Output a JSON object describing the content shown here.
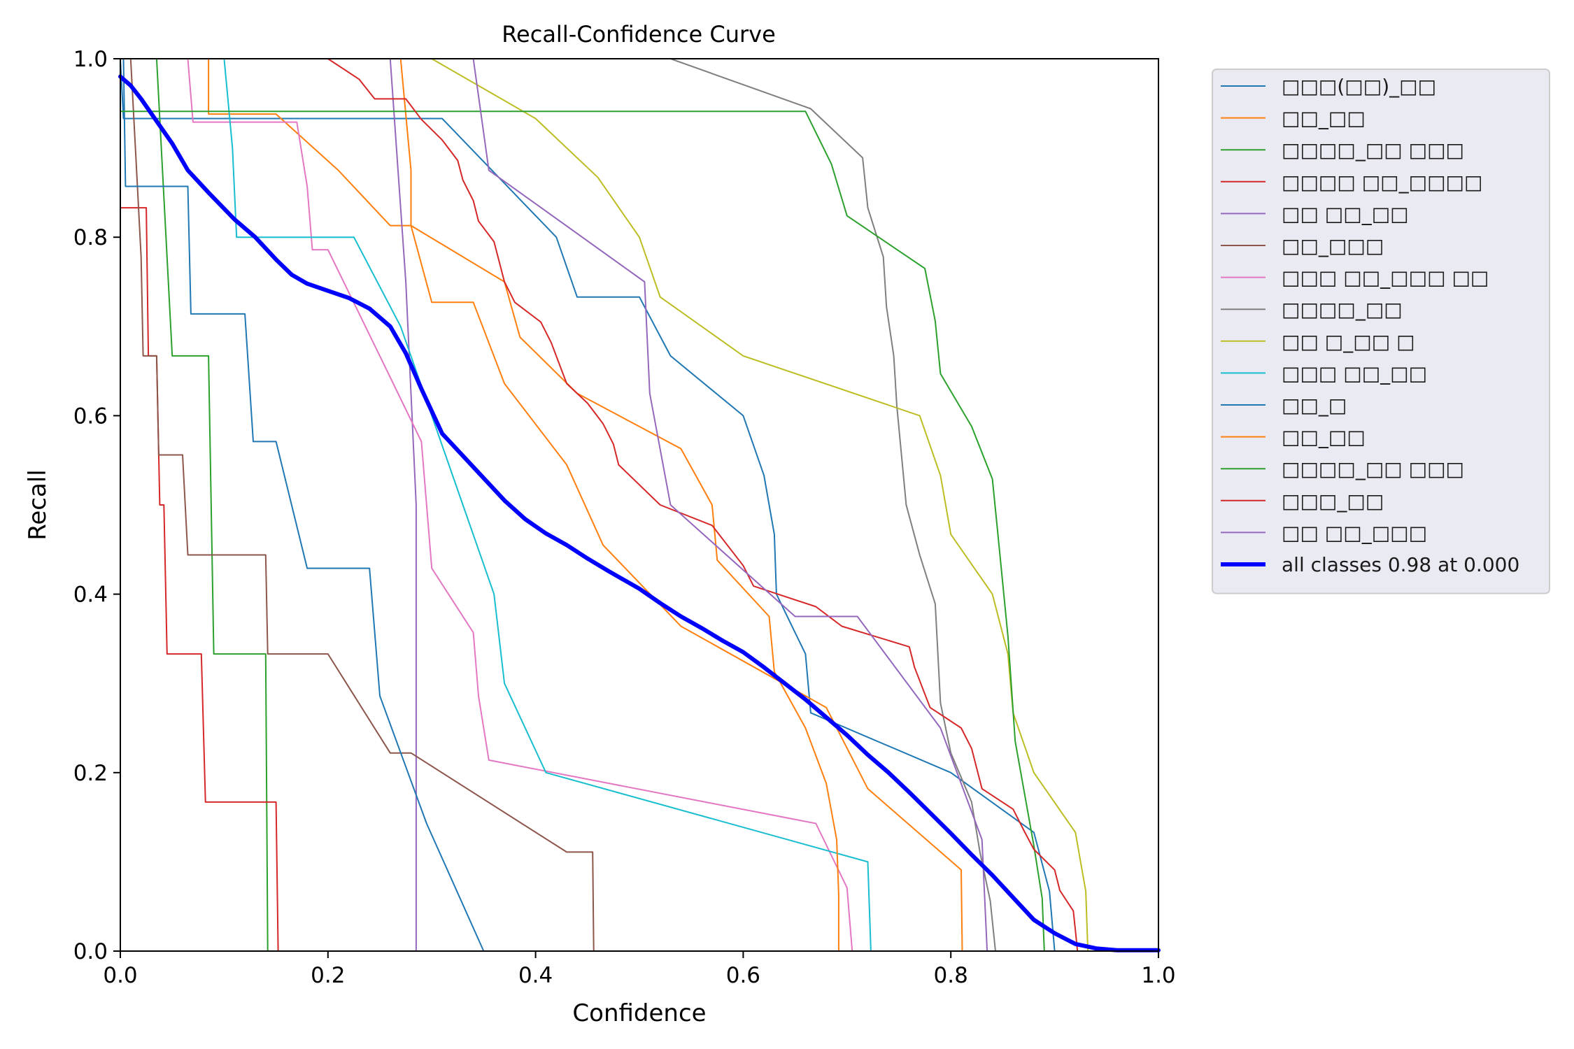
{
  "chart_data": {
    "type": "line",
    "title": "Recall-Confidence Curve",
    "xlabel": "Confidence",
    "ylabel": "Recall",
    "xlim": [
      0,
      1
    ],
    "ylim": [
      0,
      1
    ],
    "xticks": [
      "0.0",
      "0.2",
      "0.4",
      "0.6",
      "0.8",
      "1.0"
    ],
    "yticks": [
      "0.0",
      "0.2",
      "0.4",
      "0.6",
      "0.8",
      "1.0"
    ],
    "grid": false,
    "legend_position": "outside-right-top",
    "series": [
      {
        "name": "□□□(□□)_□□",
        "color": "#1f77b4",
        "width": 2,
        "points": [
          [
            0,
            1
          ],
          [
            0.003,
            0.933
          ],
          [
            0.24,
            0.933
          ],
          [
            0.31,
            0.933
          ],
          [
            0.42,
            0.8
          ],
          [
            0.44,
            0.733
          ],
          [
            0.5,
            0.733
          ],
          [
            0.53,
            0.667
          ],
          [
            0.6,
            0.6
          ],
          [
            0.62,
            0.533
          ],
          [
            0.63,
            0.467
          ],
          [
            0.632,
            0.4
          ],
          [
            0.66,
            0.333
          ],
          [
            0.665,
            0.267
          ],
          [
            0.8,
            0.2
          ],
          [
            0.88,
            0.133
          ],
          [
            0.895,
            0.067
          ],
          [
            0.9,
            0
          ]
        ]
      },
      {
        "name": "□□_□□",
        "color": "#ff7f0e",
        "width": 2,
        "points": [
          [
            0.085,
            1
          ],
          [
            0.085,
            0.938
          ],
          [
            0.15,
            0.938
          ],
          [
            0.21,
            0.875
          ],
          [
            0.26,
            0.813
          ],
          [
            0.28,
            0.813
          ],
          [
            0.3,
            0.727
          ],
          [
            0.34,
            0.727
          ],
          [
            0.37,
            0.636
          ],
          [
            0.43,
            0.545
          ],
          [
            0.465,
            0.455
          ],
          [
            0.54,
            0.364
          ],
          [
            0.68,
            0.273
          ],
          [
            0.72,
            0.182
          ],
          [
            0.81,
            0.091
          ],
          [
            0.811,
            0
          ]
        ]
      },
      {
        "name": "□□□□_□□ □□□",
        "color": "#2ca02c",
        "width": 2,
        "points": [
          [
            0.035,
            1
          ],
          [
            0.05,
            0.667
          ],
          [
            0.085,
            0.667
          ],
          [
            0.09,
            0.333
          ],
          [
            0.14,
            0.333
          ],
          [
            0.142,
            0
          ]
        ]
      },
      {
        "name": "□□□□ □□_□□□□",
        "color": "#d62728",
        "width": 2,
        "points": [
          [
            0,
            0.833
          ],
          [
            0.025,
            0.833
          ],
          [
            0.027,
            0.667
          ],
          [
            0.035,
            0.667
          ],
          [
            0.038,
            0.5
          ],
          [
            0.042,
            0.5
          ],
          [
            0.045,
            0.333
          ],
          [
            0.078,
            0.333
          ],
          [
            0.082,
            0.167
          ],
          [
            0.15,
            0.167
          ],
          [
            0.152,
            0
          ]
        ]
      },
      {
        "name": "□□ □□_□□",
        "color": "#9467bd",
        "width": 2,
        "points": [
          [
            0.26,
            1
          ],
          [
            0.275,
            0.75
          ],
          [
            0.285,
            0.5
          ],
          [
            0.285,
            0
          ]
        ]
      },
      {
        "name": "□□_□□□",
        "color": "#8c564b",
        "width": 2,
        "points": [
          [
            0.01,
            1
          ],
          [
            0.015,
            0.889
          ],
          [
            0.02,
            0.778
          ],
          [
            0.022,
            0.667
          ],
          [
            0.035,
            0.667
          ],
          [
            0.037,
            0.556
          ],
          [
            0.06,
            0.556
          ],
          [
            0.065,
            0.444
          ],
          [
            0.14,
            0.444
          ],
          [
            0.142,
            0.333
          ],
          [
            0.2,
            0.333
          ],
          [
            0.26,
            0.222
          ],
          [
            0.28,
            0.222
          ],
          [
            0.43,
            0.111
          ],
          [
            0.455,
            0.111
          ],
          [
            0.456,
            0
          ]
        ]
      },
      {
        "name": "□□□ □□_□□□ □□",
        "color": "#e377c2",
        "width": 2,
        "points": [
          [
            0.065,
            1
          ],
          [
            0.07,
            0.929
          ],
          [
            0.17,
            0.929
          ],
          [
            0.18,
            0.857
          ],
          [
            0.185,
            0.786
          ],
          [
            0.2,
            0.786
          ],
          [
            0.26,
            0.643
          ],
          [
            0.29,
            0.571
          ],
          [
            0.3,
            0.429
          ],
          [
            0.34,
            0.357
          ],
          [
            0.345,
            0.286
          ],
          [
            0.355,
            0.214
          ],
          [
            0.67,
            0.143
          ],
          [
            0.7,
            0.071
          ],
          [
            0.705,
            0
          ]
        ]
      },
      {
        "name": "□□□□_□□",
        "color": "#7f7f7f",
        "width": 2,
        "points": [
          [
            0.53,
            1
          ],
          [
            0.665,
            0.944
          ],
          [
            0.715,
            0.889
          ],
          [
            0.72,
            0.833
          ],
          [
            0.735,
            0.778
          ],
          [
            0.738,
            0.722
          ],
          [
            0.745,
            0.667
          ],
          [
            0.748,
            0.611
          ],
          [
            0.757,
            0.5
          ],
          [
            0.77,
            0.444
          ],
          [
            0.785,
            0.389
          ],
          [
            0.79,
            0.278
          ],
          [
            0.8,
            0.222
          ],
          [
            0.82,
            0.167
          ],
          [
            0.828,
            0.111
          ],
          [
            0.838,
            0.056
          ],
          [
            0.843,
            0
          ]
        ]
      },
      {
        "name": "□□ □_□□ □",
        "color": "#bcbd22",
        "width": 2,
        "points": [
          [
            0.3,
            1
          ],
          [
            0.4,
            0.933
          ],
          [
            0.46,
            0.867
          ],
          [
            0.5,
            0.8
          ],
          [
            0.52,
            0.733
          ],
          [
            0.6,
            0.667
          ],
          [
            0.77,
            0.6
          ],
          [
            0.79,
            0.533
          ],
          [
            0.8,
            0.467
          ],
          [
            0.84,
            0.4
          ],
          [
            0.855,
            0.333
          ],
          [
            0.86,
            0.267
          ],
          [
            0.88,
            0.2
          ],
          [
            0.92,
            0.133
          ],
          [
            0.93,
            0.067
          ],
          [
            0.932,
            0
          ]
        ]
      },
      {
        "name": "□□□ □□_□□",
        "color": "#17becf",
        "width": 2,
        "points": [
          [
            0.1,
            1
          ],
          [
            0.108,
            0.9
          ],
          [
            0.112,
            0.8
          ],
          [
            0.225,
            0.8
          ],
          [
            0.27,
            0.7
          ],
          [
            0.3,
            0.6
          ],
          [
            0.33,
            0.5
          ],
          [
            0.36,
            0.4
          ],
          [
            0.37,
            0.3
          ],
          [
            0.41,
            0.2
          ],
          [
            0.72,
            0.1
          ],
          [
            0.723,
            0
          ]
        ]
      },
      {
        "name": "□□_□",
        "color": "#1f77b4",
        "width": 2,
        "points": [
          [
            0.003,
            1
          ],
          [
            0.005,
            0.857
          ],
          [
            0.065,
            0.857
          ],
          [
            0.068,
            0.714
          ],
          [
            0.12,
            0.714
          ],
          [
            0.128,
            0.571
          ],
          [
            0.15,
            0.571
          ],
          [
            0.18,
            0.429
          ],
          [
            0.24,
            0.429
          ],
          [
            0.25,
            0.286
          ],
          [
            0.295,
            0.143
          ],
          [
            0.35,
            0
          ]
        ]
      },
      {
        "name": "□□_□□",
        "color": "#ff7f0e",
        "width": 2,
        "points": [
          [
            0.27,
            1
          ],
          [
            0.28,
            0.875
          ],
          [
            0.28,
            0.813
          ],
          [
            0.37,
            0.75
          ],
          [
            0.385,
            0.688
          ],
          [
            0.44,
            0.625
          ],
          [
            0.54,
            0.563
          ],
          [
            0.57,
            0.5
          ],
          [
            0.575,
            0.438
          ],
          [
            0.625,
            0.375
          ],
          [
            0.63,
            0.313
          ],
          [
            0.66,
            0.25
          ],
          [
            0.68,
            0.188
          ],
          [
            0.69,
            0.125
          ],
          [
            0.692,
            0.063
          ],
          [
            0.692,
            0
          ]
        ]
      },
      {
        "name": "□□□□_□□ □□□",
        "color": "#2ca02c",
        "width": 2,
        "points": [
          [
            0,
            0.941
          ],
          [
            0.66,
            0.941
          ],
          [
            0.685,
            0.882
          ],
          [
            0.7,
            0.824
          ],
          [
            0.775,
            0.765
          ],
          [
            0.785,
            0.706
          ],
          [
            0.79,
            0.647
          ],
          [
            0.82,
            0.588
          ],
          [
            0.84,
            0.529
          ],
          [
            0.845,
            0.471
          ],
          [
            0.855,
            0.353
          ],
          [
            0.862,
            0.235
          ],
          [
            0.88,
            0.118
          ],
          [
            0.888,
            0.059
          ],
          [
            0.89,
            0
          ]
        ]
      },
      {
        "name": "□□□_□□",
        "color": "#d62728",
        "width": 2,
        "points": [
          [
            0.2,
            1
          ],
          [
            0.23,
            0.977
          ],
          [
            0.245,
            0.955
          ],
          [
            0.275,
            0.955
          ],
          [
            0.29,
            0.932
          ],
          [
            0.31,
            0.909
          ],
          [
            0.325,
            0.886
          ],
          [
            0.33,
            0.864
          ],
          [
            0.34,
            0.841
          ],
          [
            0.345,
            0.818
          ],
          [
            0.36,
            0.795
          ],
          [
            0.37,
            0.75
          ],
          [
            0.38,
            0.727
          ],
          [
            0.405,
            0.705
          ],
          [
            0.415,
            0.682
          ],
          [
            0.43,
            0.636
          ],
          [
            0.45,
            0.614
          ],
          [
            0.465,
            0.591
          ],
          [
            0.475,
            0.568
          ],
          [
            0.48,
            0.545
          ],
          [
            0.52,
            0.5
          ],
          [
            0.57,
            0.477
          ],
          [
            0.6,
            0.432
          ],
          [
            0.61,
            0.409
          ],
          [
            0.67,
            0.386
          ],
          [
            0.695,
            0.364
          ],
          [
            0.76,
            0.341
          ],
          [
            0.765,
            0.318
          ],
          [
            0.78,
            0.273
          ],
          [
            0.81,
            0.25
          ],
          [
            0.82,
            0.227
          ],
          [
            0.83,
            0.182
          ],
          [
            0.86,
            0.159
          ],
          [
            0.87,
            0.136
          ],
          [
            0.88,
            0.114
          ],
          [
            0.9,
            0.091
          ],
          [
            0.905,
            0.068
          ],
          [
            0.918,
            0.045
          ],
          [
            0.92,
            0.023
          ],
          [
            0.922,
            0
          ]
        ]
      },
      {
        "name": "□□ □□_□□□",
        "color": "#9467bd",
        "width": 2,
        "points": [
          [
            0.34,
            1
          ],
          [
            0.355,
            0.875
          ],
          [
            0.505,
            0.75
          ],
          [
            0.51,
            0.625
          ],
          [
            0.53,
            0.5
          ],
          [
            0.65,
            0.375
          ],
          [
            0.71,
            0.375
          ],
          [
            0.79,
            0.25
          ],
          [
            0.83,
            0.125
          ],
          [
            0.835,
            0
          ]
        ]
      },
      {
        "name": "all classes 0.98 at 0.000",
        "color": "#0000ff",
        "width": 6,
        "points": [
          [
            0,
            0.98
          ],
          [
            0.01,
            0.97
          ],
          [
            0.02,
            0.955
          ],
          [
            0.035,
            0.93
          ],
          [
            0.05,
            0.905
          ],
          [
            0.065,
            0.875
          ],
          [
            0.085,
            0.85
          ],
          [
            0.11,
            0.82
          ],
          [
            0.13,
            0.8
          ],
          [
            0.15,
            0.775
          ],
          [
            0.165,
            0.758
          ],
          [
            0.18,
            0.748
          ],
          [
            0.2,
            0.74
          ],
          [
            0.22,
            0.732
          ],
          [
            0.24,
            0.72
          ],
          [
            0.26,
            0.7
          ],
          [
            0.275,
            0.67
          ],
          [
            0.29,
            0.63
          ],
          [
            0.31,
            0.58
          ],
          [
            0.33,
            0.555
          ],
          [
            0.35,
            0.53
          ],
          [
            0.37,
            0.505
          ],
          [
            0.39,
            0.484
          ],
          [
            0.41,
            0.468
          ],
          [
            0.43,
            0.455
          ],
          [
            0.45,
            0.44
          ],
          [
            0.47,
            0.426
          ],
          [
            0.5,
            0.406
          ],
          [
            0.52,
            0.39
          ],
          [
            0.54,
            0.375
          ],
          [
            0.56,
            0.362
          ],
          [
            0.58,
            0.348
          ],
          [
            0.6,
            0.335
          ],
          [
            0.62,
            0.318
          ],
          [
            0.64,
            0.3
          ],
          [
            0.66,
            0.282
          ],
          [
            0.68,
            0.262
          ],
          [
            0.7,
            0.242
          ],
          [
            0.72,
            0.22
          ],
          [
            0.74,
            0.2
          ],
          [
            0.76,
            0.178
          ],
          [
            0.78,
            0.155
          ],
          [
            0.8,
            0.132
          ],
          [
            0.82,
            0.108
          ],
          [
            0.84,
            0.085
          ],
          [
            0.86,
            0.06
          ],
          [
            0.88,
            0.035
          ],
          [
            0.9,
            0.02
          ],
          [
            0.92,
            0.008
          ],
          [
            0.94,
            0.003
          ],
          [
            0.96,
            0.001
          ],
          [
            1,
            0.001
          ]
        ]
      }
    ]
  }
}
